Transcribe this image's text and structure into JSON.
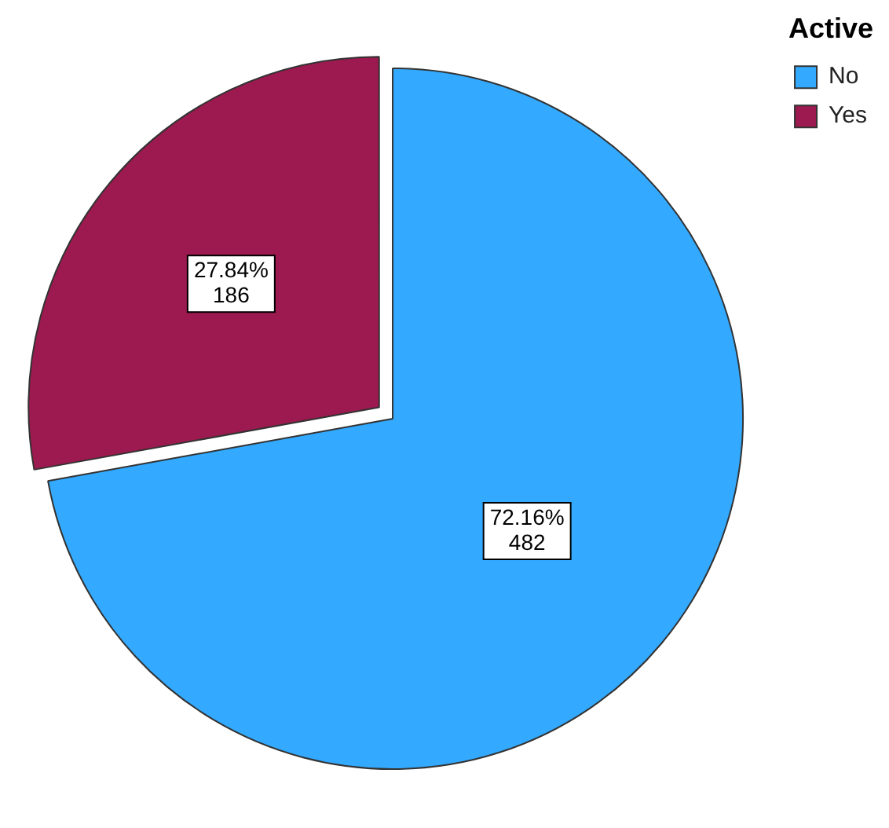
{
  "chart_data": {
    "type": "pie",
    "legend_title": "Active",
    "legend": "top right",
    "categories": [
      "No",
      "Yes"
    ],
    "values": [
      482,
      186
    ],
    "colors": [
      "#33aaff",
      "#9c1a4f"
    ],
    "value_labels": [
      "72.16%\n482",
      "27.84%\n186"
    ]
  }
}
